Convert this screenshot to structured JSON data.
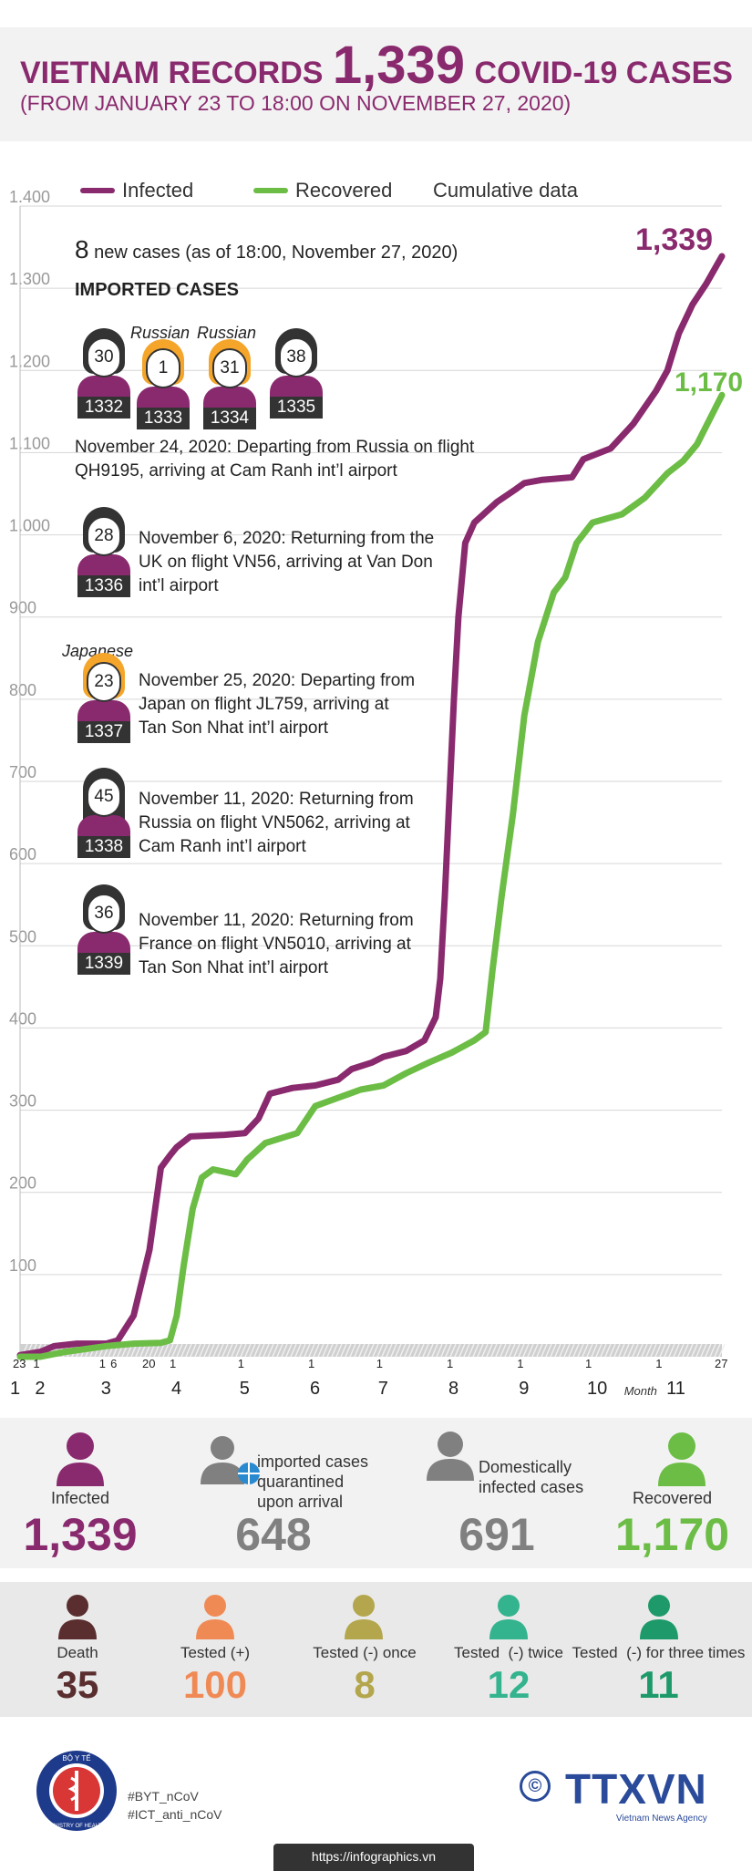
{
  "header": {
    "title_part1": "VIETNAM RECORDS",
    "title_number": "1,339",
    "title_part2": "COVID-19 CASES",
    "subtitle": "(FROM JANUARY 23 TO 18:00 ON NOVEMBER 27, 2020)"
  },
  "legend": {
    "infected": "Infected",
    "recovered": "Recovered",
    "cumulative": "Cumulative data"
  },
  "colors": {
    "infected": "#8a2a6e",
    "recovered": "#6cbd45",
    "death": "#5a2e2e",
    "tested_pos": "#f08a55",
    "tested_once": "#b3a64c",
    "tested_twice": "#33b38e",
    "tested_three": "#1e9a6a",
    "neutral": "#808080"
  },
  "chart_data": {
    "type": "line",
    "ylim": [
      0,
      1400
    ],
    "yticks": [
      "1.400",
      "1.300",
      "1.200",
      "1.100",
      "1.000",
      "900",
      "800",
      "700",
      "600",
      "500",
      "400",
      "300",
      "200",
      "100"
    ],
    "ytick_values": [
      1400,
      1300,
      1200,
      1100,
      1000,
      900,
      800,
      700,
      600,
      500,
      400,
      300,
      200,
      100
    ],
    "x_day_ticks": [
      {
        "label": "23",
        "pos": 0
      },
      {
        "label": "1",
        "pos": 9
      },
      {
        "label": "1",
        "pos": 38
      },
      {
        "label": "6",
        "pos": 43
      },
      {
        "label": "20",
        "pos": 57
      },
      {
        "label": "1",
        "pos": 69
      },
      {
        "label": "1",
        "pos": 99
      },
      {
        "label": "1",
        "pos": 130
      },
      {
        "label": "1",
        "pos": 160
      },
      {
        "label": "1",
        "pos": 191
      },
      {
        "label": "1",
        "pos": 222
      },
      {
        "label": "1",
        "pos": 252
      },
      {
        "label": "1",
        "pos": 283
      },
      {
        "label": "27",
        "pos": 309
      }
    ],
    "x_month_ticks": [
      {
        "label": "1",
        "pos": -2
      },
      {
        "label": "2",
        "pos": 9
      },
      {
        "label": "3",
        "pos": 38
      },
      {
        "label": "4",
        "pos": 69
      },
      {
        "label": "5",
        "pos": 99
      },
      {
        "label": "6",
        "pos": 130
      },
      {
        "label": "7",
        "pos": 160
      },
      {
        "label": "8",
        "pos": 191
      },
      {
        "label": "9",
        "pos": 222
      },
      {
        "label": "10",
        "pos": 252
      },
      {
        "label": "11",
        "pos": 287
      }
    ],
    "x_month_word": "Month",
    "series": [
      {
        "name": "Infected",
        "points": [
          [
            0,
            2
          ],
          [
            9,
            6
          ],
          [
            15,
            13
          ],
          [
            25,
            16
          ],
          [
            38,
            16
          ],
          [
            43,
            20
          ],
          [
            50,
            50
          ],
          [
            57,
            130
          ],
          [
            62,
            230
          ],
          [
            66,
            245
          ],
          [
            69,
            255
          ],
          [
            75,
            268
          ],
          [
            90,
            270
          ],
          [
            99,
            272
          ],
          [
            105,
            290
          ],
          [
            110,
            320
          ],
          [
            120,
            327
          ],
          [
            130,
            330
          ],
          [
            140,
            337
          ],
          [
            146,
            350
          ],
          [
            155,
            358
          ],
          [
            160,
            365
          ],
          [
            170,
            372
          ],
          [
            178,
            385
          ],
          [
            183,
            413
          ],
          [
            185,
            460
          ],
          [
            187,
            560
          ],
          [
            189,
            680
          ],
          [
            191,
            800
          ],
          [
            193,
            900
          ],
          [
            196,
            990
          ],
          [
            200,
            1015
          ],
          [
            210,
            1040
          ],
          [
            218,
            1055
          ],
          [
            222,
            1063
          ],
          [
            230,
            1067
          ],
          [
            243,
            1070
          ],
          [
            248,
            1092
          ],
          [
            260,
            1105
          ],
          [
            270,
            1135
          ],
          [
            280,
            1175
          ],
          [
            285,
            1200
          ],
          [
            290,
            1245
          ],
          [
            296,
            1280
          ],
          [
            302,
            1305
          ],
          [
            309,
            1339
          ]
        ]
      },
      {
        "name": "Recovered",
        "points": [
          [
            0,
            0
          ],
          [
            9,
            0
          ],
          [
            20,
            6
          ],
          [
            38,
            13
          ],
          [
            50,
            16
          ],
          [
            62,
            17
          ],
          [
            66,
            20
          ],
          [
            69,
            50
          ],
          [
            72,
            110
          ],
          [
            76,
            180
          ],
          [
            80,
            218
          ],
          [
            85,
            228
          ],
          [
            95,
            222
          ],
          [
            100,
            240
          ],
          [
            108,
            260
          ],
          [
            115,
            266
          ],
          [
            122,
            272
          ],
          [
            130,
            305
          ],
          [
            140,
            315
          ],
          [
            150,
            325
          ],
          [
            160,
            330
          ],
          [
            170,
            345
          ],
          [
            180,
            358
          ],
          [
            190,
            370
          ],
          [
            200,
            385
          ],
          [
            205,
            395
          ],
          [
            208,
            470
          ],
          [
            212,
            560
          ],
          [
            217,
            660
          ],
          [
            222,
            780
          ],
          [
            228,
            870
          ],
          [
            235,
            930
          ],
          [
            240,
            948
          ],
          [
            245,
            990
          ],
          [
            252,
            1015
          ],
          [
            265,
            1025
          ],
          [
            275,
            1045
          ],
          [
            285,
            1075
          ],
          [
            292,
            1090
          ],
          [
            298,
            1110
          ],
          [
            309,
            1170
          ]
        ]
      }
    ],
    "total_infected_label": "1,339",
    "total_recovered_label": "1,170"
  },
  "panel": {
    "new_cases_number": "8",
    "new_cases_text": "new cases (as of 18:00, November 27, 2020)",
    "imported_title": "IMPORTED CASES",
    "group_people": [
      {
        "age": "30",
        "id": "1332",
        "nat": ""
      },
      {
        "age": "1",
        "id": "1333",
        "nat": "Russian"
      },
      {
        "age": "31",
        "id": "1334",
        "nat": "Russian"
      },
      {
        "age": "38",
        "id": "1335",
        "nat": ""
      }
    ],
    "group_text_1": "November 24, 2020: Departing from Russia on flight",
    "group_text_2": "QH9195, arriving at Cam Ranh int’l airport",
    "cases": [
      {
        "age": "28",
        "id": "1336",
        "nat": "",
        "l1": "November 6, 2020: Returning from the",
        "l2": "UK on flight VN56, arriving at Van Don",
        "l3": "int’l airport"
      },
      {
        "age": "23",
        "id": "1337",
        "nat": "Japanese",
        "l1": "November 25, 2020: Departing from",
        "l2": "Japan on flight JL759, arriving at",
        "l3": "Tan Son Nhat int’l airport"
      },
      {
        "age": "45",
        "id": "1338",
        "nat": "",
        "l1": "November 11, 2020: Returning from",
        "l2": "Russia on flight VN5062, arriving at",
        "l3": "Cam Ranh int’l airport"
      },
      {
        "age": "36",
        "id": "1339",
        "nat": "",
        "l1": "November 11, 2020: Returning from",
        "l2": "France on flight VN5010, arriving at",
        "l3": "Tan Son Nhat int’l airport"
      }
    ]
  },
  "stats": {
    "infected": {
      "label": "Infected",
      "value": "1,339"
    },
    "imported": {
      "label1": "imported cases",
      "label2": "quarantined",
      "label3": "upon arrival",
      "value": "648"
    },
    "domestic": {
      "label1": "Domestically",
      "label2": "infected cases",
      "value": "691"
    },
    "recovered": {
      "label": "Recovered",
      "value": "1,170"
    },
    "death": {
      "label": "Death",
      "value": "35"
    },
    "tested_pos": {
      "label": "Tested (+)",
      "value": "100"
    },
    "tested_once": {
      "label": "Tested (-) once",
      "value": "8"
    },
    "tested_twice": {
      "label": "Tested  (-) twice",
      "value": "12"
    },
    "tested_three": {
      "label": "Tested  (-) for three times",
      "value": "11"
    }
  },
  "footer": {
    "tag1": "#BYT_nCoV",
    "tag2": "#ICT_anti_nCoV",
    "url": "https://infographics.vn",
    "agency": "TTXVN",
    "agency_sub": "Vietnam News Agency",
    "copyright": "©",
    "ministry_top": "BỘ Y TẾ",
    "ministry_bottom": "MINISTRY OF HEALTH"
  }
}
